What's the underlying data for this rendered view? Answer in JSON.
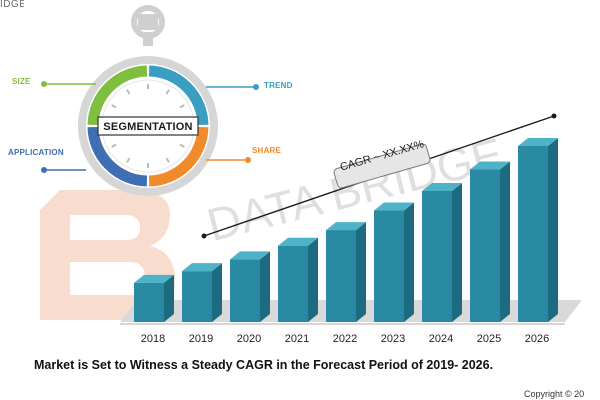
{
  "brand": {
    "corner_logo_text": "IDGE",
    "watermark_text": "DATA BRIDGE"
  },
  "colors": {
    "bar_front": "#2a8aa3",
    "bar_top": "#4fb3c8",
    "bar_side": "#1e6b80",
    "floor": "#d9d9d9",
    "size_segment": "#7fbf3f",
    "trend_segment": "#3a9ec2",
    "share_segment": "#f08a2b",
    "application_segment": "#3f6fb3",
    "watermark_orange": "#f6d2bf",
    "watermark_gray": "#dcdcdc"
  },
  "segmentation": {
    "center": "SEGMENTATION",
    "labels": {
      "size": "SIZE",
      "trend": "TREND",
      "application": "APPLICATION",
      "share": "SHARE"
    }
  },
  "chart_data": {
    "type": "bar",
    "categories": [
      "2018",
      "2019",
      "2020",
      "2021",
      "2022",
      "2023",
      "2024",
      "2025",
      "2026"
    ],
    "values": [
      1.0,
      1.3,
      1.6,
      1.95,
      2.35,
      2.85,
      3.35,
      3.9,
      4.5
    ],
    "annotation": "CAGR ~ XX.XX%",
    "title": "",
    "xlabel": "",
    "ylabel": "",
    "grid": false,
    "legend": false,
    "style": "3d-bars"
  },
  "caption": "Market is Set to Witness a Steady CAGR in the Forecast Period of 2019- 2026.",
  "copyright": "Copyright © 20"
}
